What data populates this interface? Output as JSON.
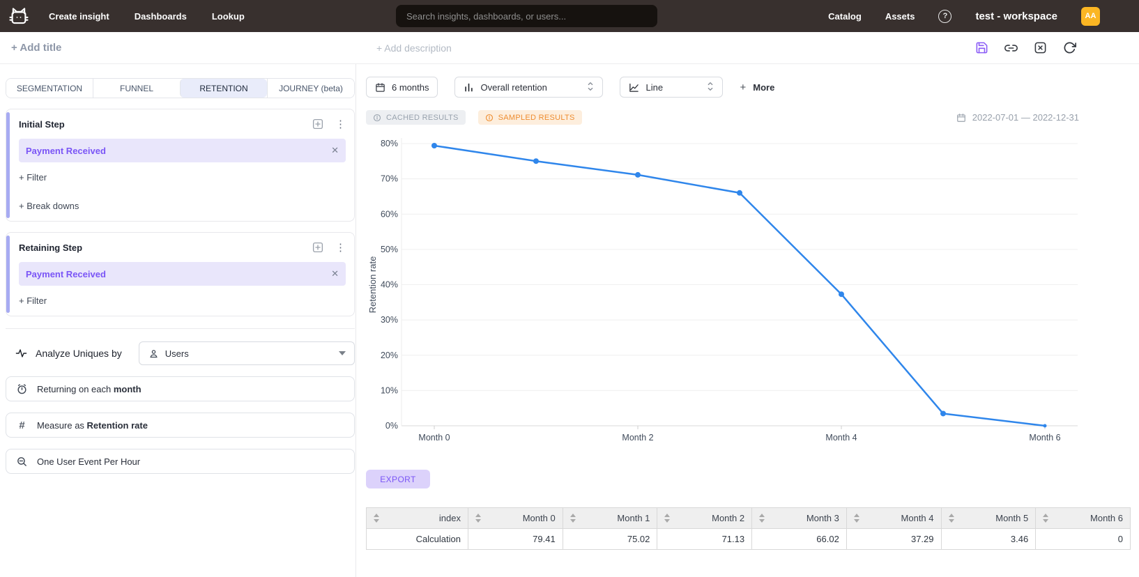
{
  "nav": {
    "items": [
      {
        "label": "Create insight"
      },
      {
        "label": "Dashboards"
      },
      {
        "label": "Lookup"
      }
    ],
    "search_placeholder": "Search insights, dashboards, or users...",
    "right_items": [
      {
        "label": "Catalog"
      },
      {
        "label": "Assets"
      }
    ],
    "help": "?",
    "workspace": "test - workspace",
    "avatar": "AA"
  },
  "header": {
    "add_title": "+ Add title",
    "add_description": "+ Add description"
  },
  "builder": {
    "tabs": [
      {
        "label": "SEGMENTATION",
        "active": false
      },
      {
        "label": "FUNNEL",
        "active": false
      },
      {
        "label": "RETENTION",
        "active": true
      },
      {
        "label": "JOURNEY (beta)",
        "active": false
      }
    ],
    "steps": [
      {
        "title": "Initial Step",
        "event": "Payment Received",
        "actions": [
          "+ Filter",
          "+ Break downs"
        ]
      },
      {
        "title": "Retaining Step",
        "event": "Payment Received",
        "actions": [
          "+ Filter"
        ]
      }
    ],
    "analyze": {
      "label": "Analyze Uniques by",
      "value": "Users"
    },
    "options": [
      {
        "icon": "timer-icon",
        "prefix": "Returning on each ",
        "bold": "month"
      },
      {
        "icon": "hash-icon",
        "prefix": "Measure as ",
        "bold": "Retention rate"
      },
      {
        "icon": "zoom-out-icon",
        "prefix": "One User Event Per Hour",
        "bold": ""
      }
    ]
  },
  "controls": {
    "date_button": "6 months",
    "metric_select": "Overall retention",
    "chart_type_select": "Line",
    "more_label": "More",
    "badges": [
      {
        "label": "CACHED RESULTS",
        "variant": "gray"
      },
      {
        "label": "SAMPLED RESULTS",
        "variant": "orange"
      }
    ],
    "date_range": "2022-07-01 — 2022-12-31"
  },
  "chart_data": {
    "type": "line",
    "x": [
      "Month 0",
      "Month 1",
      "Month 2",
      "Month 3",
      "Month 4",
      "Month 5",
      "Month 6"
    ],
    "values": [
      79.41,
      75.02,
      71.13,
      66.02,
      37.29,
      3.46,
      0
    ],
    "title": "",
    "xlabel": "",
    "ylabel": "Retention rate",
    "ylim": [
      0,
      80
    ],
    "ytick_step": 10,
    "ytick_suffix": "%",
    "x_labeled_ticks": [
      "Month 0",
      "Month 2",
      "Month 4",
      "Month 6"
    ],
    "grid": true,
    "legend": "none",
    "line_color": "#2f86eb"
  },
  "export_label": "EXPORT",
  "table": {
    "columns": [
      "index",
      "Month 0",
      "Month 1",
      "Month 2",
      "Month 3",
      "Month 4",
      "Month 5",
      "Month 6"
    ],
    "rows": [
      [
        "Calculation",
        "79.41",
        "75.02",
        "71.13",
        "66.02",
        "37.29",
        "3.46",
        "0"
      ]
    ]
  },
  "colors": {
    "topnav_bg": "#38302e",
    "accent_purple": "#7a55f6",
    "chip_bg": "#e9e6fb",
    "active_tab_bg": "#e9ecfa",
    "chart_line": "#2f86eb",
    "avatar_bg": "#fbb623",
    "sampled_badge": "#ee8d30"
  }
}
